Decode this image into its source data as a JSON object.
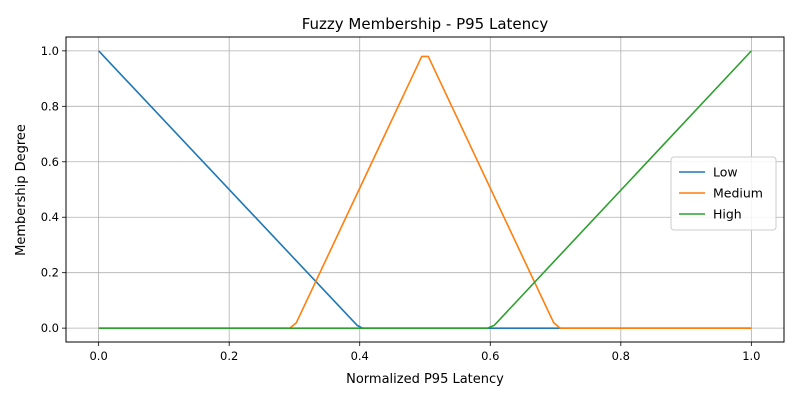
{
  "chart_data": {
    "type": "line",
    "title": "Fuzzy Membership - P95 Latency",
    "xlabel": "Normalized P95 Latency",
    "ylabel": "Membership Degree",
    "xlim": [
      -0.05,
      1.05
    ],
    "ylim": [
      -0.05,
      1.05
    ],
    "xticks": [
      0.0,
      0.2,
      0.4,
      0.6,
      0.8,
      1.0
    ],
    "xtick_labels": [
      "0.0",
      "0.2",
      "0.4",
      "0.6",
      "0.8",
      "1.0"
    ],
    "yticks": [
      0.0,
      0.2,
      0.4,
      0.6,
      0.8,
      1.0
    ],
    "ytick_labels": [
      "0.0",
      "0.2",
      "0.4",
      "0.6",
      "0.8",
      "1.0"
    ],
    "grid": true,
    "legend_position": "center-right",
    "series": [
      {
        "name": "Low",
        "color": "#1f77b4",
        "x": [
          0.0,
          0.396,
          0.404,
          1.0
        ],
        "y": [
          1.0,
          0.01,
          0.0,
          0.0
        ]
      },
      {
        "name": "Medium",
        "color": "#ff7f0e",
        "x": [
          0.0,
          0.293,
          0.303,
          0.495,
          0.505,
          0.697,
          0.707,
          1.0
        ],
        "y": [
          0.0,
          0.0,
          0.02,
          0.98,
          0.98,
          0.02,
          0.0,
          0.0
        ]
      },
      {
        "name": "High",
        "color": "#2ca02c",
        "x": [
          0.0,
          0.596,
          0.606,
          1.0
        ],
        "y": [
          0.0,
          0.0,
          0.01,
          1.0
        ]
      }
    ]
  }
}
